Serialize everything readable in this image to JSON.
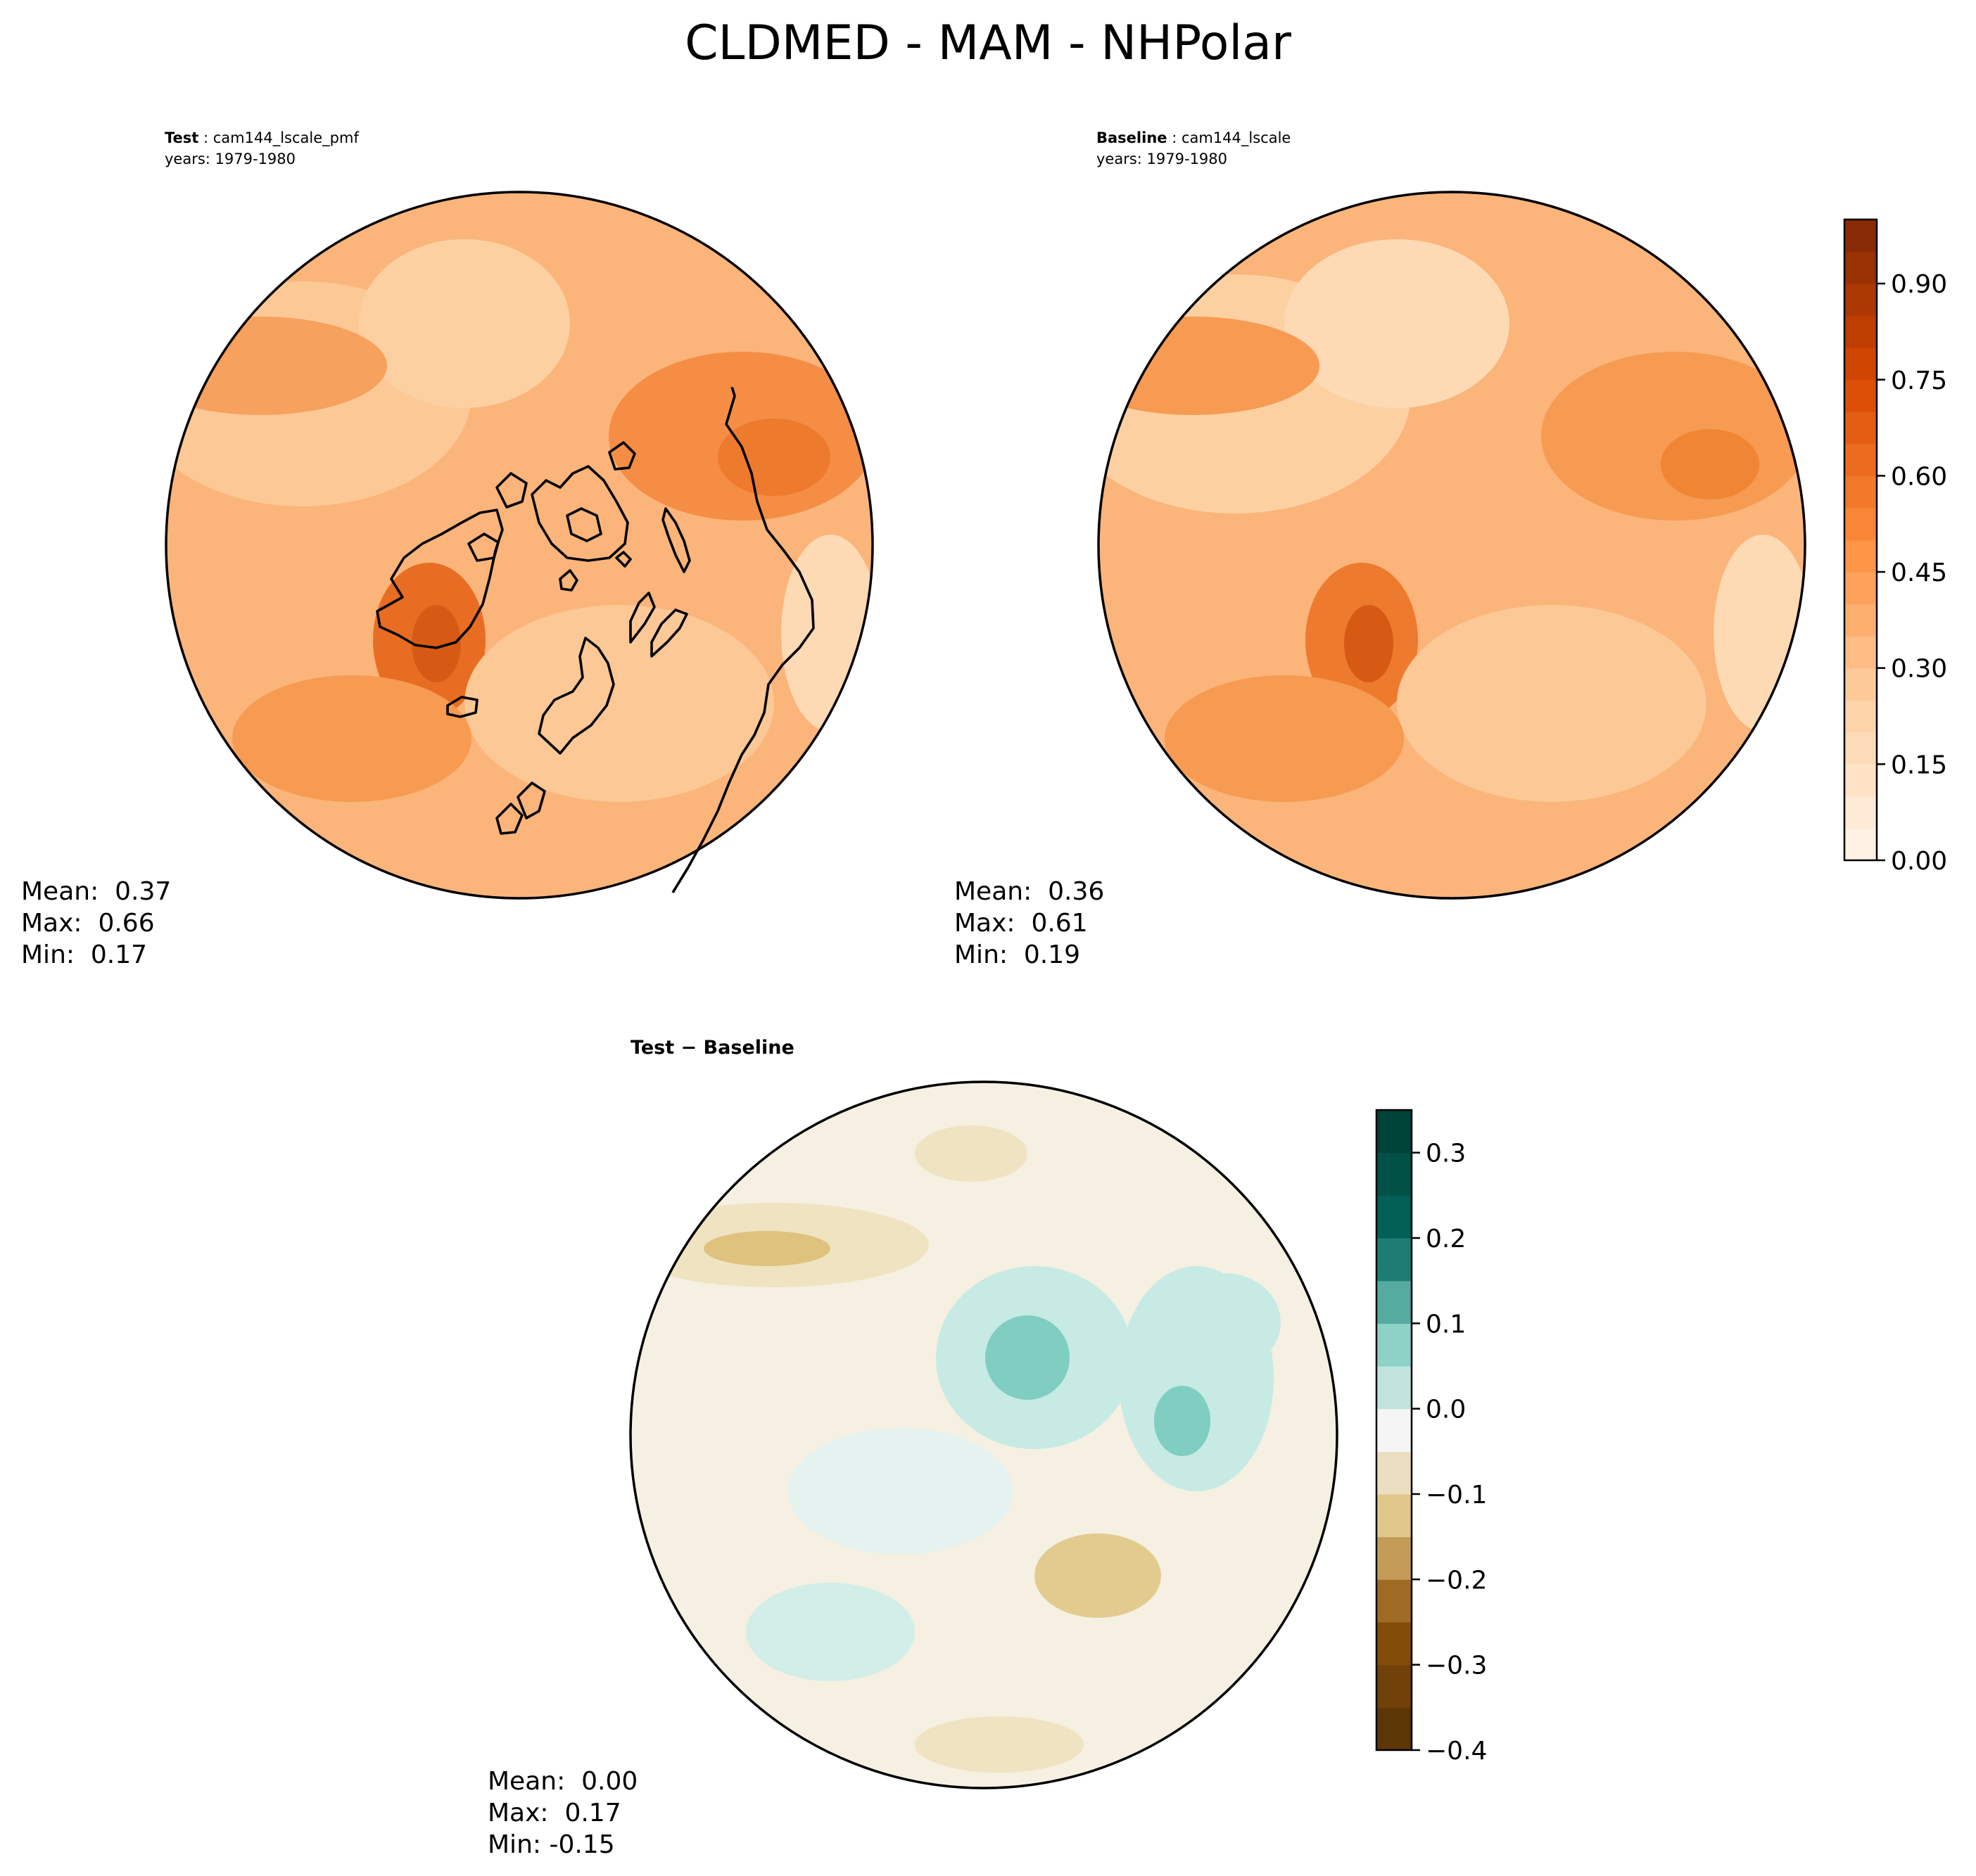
{
  "title": "CLDMED - MAM - NHPolar",
  "panels": {
    "test": {
      "label": "Test",
      "case": "cam144_lscale_pmf",
      "years": "years: 1979-1980",
      "stats": {
        "mean_label": "Mean:  0.37",
        "max_label": "Max:  0.66",
        "min_label": "Min:  0.17"
      }
    },
    "baseline": {
      "label": "Baseline",
      "case": "cam144_lscale",
      "years": "years: 1979-1980",
      "stats": {
        "mean_label": "Mean:  0.36",
        "max_label": "Max:  0.61",
        "min_label": "Min:  0.19"
      }
    },
    "diff": {
      "title": "Test − Baseline",
      "stats": {
        "mean_label": "Mean:  0.00",
        "max_label": "Max:  0.17",
        "min_label": "Min: -0.15"
      }
    }
  },
  "chart_data": [
    {
      "type": "heatmap",
      "projection": "north-polar-stereographic",
      "panel": "Test",
      "case": "cam144_lscale_pmf",
      "colormap": "Oranges",
      "mean": 0.37,
      "max": 0.66,
      "min": 0.17,
      "colorbar": {
        "range": [
          0.0,
          1.0
        ],
        "ticks": [
          0.0,
          0.15,
          0.3,
          0.45,
          0.6,
          0.75,
          0.9
        ],
        "tick_labels": [
          "0.00",
          "0.15",
          "0.30",
          "0.45",
          "0.60",
          "0.75",
          "0.90"
        ],
        "levels": 20
      }
    },
    {
      "type": "heatmap",
      "projection": "north-polar-stereographic",
      "panel": "Baseline",
      "case": "cam144_lscale",
      "colormap": "Oranges",
      "mean": 0.36,
      "max": 0.61,
      "min": 0.19,
      "colorbar": {
        "range": [
          0.0,
          1.0
        ],
        "ticks": [
          0.0,
          0.15,
          0.3,
          0.45,
          0.6,
          0.75,
          0.9
        ],
        "tick_labels": [
          "0.00",
          "0.15",
          "0.30",
          "0.45",
          "0.60",
          "0.75",
          "0.90"
        ],
        "levels": 20
      }
    },
    {
      "type": "heatmap",
      "projection": "north-polar-stereographic",
      "panel": "Test − Baseline",
      "colormap": "BrBG",
      "mean": 0.0,
      "max": 0.17,
      "min": -0.15,
      "colorbar": {
        "range": [
          -0.4,
          0.35
        ],
        "ticks": [
          -0.4,
          -0.3,
          -0.2,
          -0.1,
          0.0,
          0.1,
          0.2,
          0.3
        ],
        "tick_labels": [
          "−0.4",
          "−0.3",
          "−0.2",
          "−0.1",
          "0.0",
          "0.1",
          "0.2",
          "0.3"
        ],
        "levels": 15
      }
    }
  ]
}
